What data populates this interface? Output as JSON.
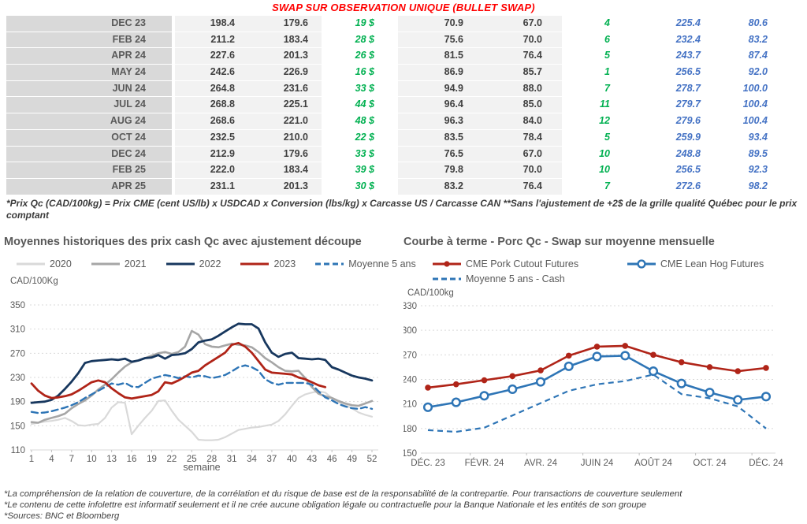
{
  "header": {
    "title": "SWAP SUR OBSERVATION UNIQUE (BULLET SWAP)",
    "title_color": "#ff0000"
  },
  "table": {
    "rows": [
      [
        "DEC 23",
        "198.4",
        "179.6",
        "19 $",
        "70.9",
        "67.0",
        "4",
        "225.4",
        "80.6"
      ],
      [
        "FEB 24",
        "211.2",
        "183.4",
        "28 $",
        "75.6",
        "70.0",
        "6",
        "232.4",
        "83.2"
      ],
      [
        "APR 24",
        "227.6",
        "201.3",
        "26 $",
        "81.5",
        "76.4",
        "5",
        "243.7",
        "87.4"
      ],
      [
        "MAY 24",
        "242.6",
        "226.9",
        "16 $",
        "86.9",
        "85.7",
        "1",
        "256.5",
        "92.0"
      ],
      [
        "JUN 24",
        "264.8",
        "231.6",
        "33 $",
        "94.9",
        "88.0",
        "7",
        "278.7",
        "100.0"
      ],
      [
        "JUL 24",
        "268.8",
        "225.1",
        "44 $",
        "96.4",
        "85.0",
        "11",
        "279.7",
        "100.4"
      ],
      [
        "AUG 24",
        "268.6",
        "221.0",
        "48 $",
        "96.3",
        "84.0",
        "12",
        "279.6",
        "100.4"
      ],
      [
        "OCT 24",
        "232.5",
        "210.0",
        "22 $",
        "83.5",
        "78.4",
        "5",
        "259.9",
        "93.4"
      ],
      [
        "DEC 24",
        "212.9",
        "179.6",
        "33 $",
        "76.5",
        "67.0",
        "10",
        "248.8",
        "89.5"
      ],
      [
        "FEB 25",
        "222.0",
        "183.4",
        "39 $",
        "79.8",
        "70.0",
        "10",
        "256.5",
        "92.3"
      ],
      [
        "APR 25",
        "231.1",
        "201.3",
        "30 $",
        "83.2",
        "76.4",
        "7",
        "272.6",
        "98.2"
      ]
    ],
    "footnote": "*Prix Qc (CAD/100kg) = Prix CME (cent US/lb) x USDCAD x Conversion (lbs/kg) x Carcasse US / Carcasse CAN **Sans l'ajustement de +2$ de la grille qualité Québec pour le prix comptant",
    "colors": {
      "positive_green": "#00b050",
      "futures_blue": "#4472c4",
      "month_bg": "#d9d9d9",
      "value_bg": "#f2f2f2"
    }
  },
  "chart_data": [
    {
      "type": "line",
      "title": "Moyennes historiques des prix cash Qc avec ajustement découpe",
      "ylabel": "CAD/100Kg",
      "xlabel": "semaine",
      "ylim": [
        110,
        350
      ],
      "yticks": [
        110,
        150,
        190,
        230,
        270,
        310,
        350
      ],
      "xticks": [
        1,
        4,
        7,
        10,
        13,
        16,
        19,
        22,
        25,
        28,
        31,
        34,
        37,
        40,
        43,
        46,
        49,
        52
      ],
      "grid": true,
      "legend_position": "top",
      "series": [
        {
          "name": "2020",
          "color": "#d9d9d9",
          "dash": false,
          "values": [
            153,
            155,
            157,
            158,
            160,
            163,
            158,
            151,
            150,
            152,
            153,
            163,
            180,
            189,
            188,
            136,
            150,
            163,
            175,
            191,
            192,
            175,
            160,
            150,
            140,
            127,
            126,
            126,
            127,
            131,
            137,
            143,
            145,
            147,
            148,
            150,
            152,
            158,
            169,
            183,
            196,
            202,
            205,
            207,
            205,
            196,
            189,
            184,
            179,
            172,
            168,
            165
          ]
        },
        {
          "name": "2021",
          "color": "#a6a6a6",
          "dash": false,
          "values": [
            156,
            155,
            160,
            163,
            166,
            170,
            179,
            186,
            192,
            200,
            210,
            218,
            227,
            238,
            248,
            255,
            258,
            262,
            266,
            270,
            272,
            269,
            272,
            281,
            307,
            301,
            285,
            281,
            280,
            283,
            286,
            284,
            283,
            280,
            272,
            262,
            255,
            247,
            241,
            240,
            241,
            229,
            214,
            203,
            199,
            196,
            191,
            187,
            184,
            183,
            187,
            191
          ]
        },
        {
          "name": "2022",
          "color": "#17375e",
          "dash": false,
          "values": [
            188,
            189,
            190,
            193,
            200,
            211,
            223,
            237,
            254,
            257,
            258,
            259,
            260,
            259,
            261,
            256,
            258,
            262,
            263,
            267,
            261,
            267,
            268,
            270,
            277,
            288,
            291,
            293,
            299,
            306,
            313,
            319,
            318,
            318,
            311,
            288,
            271,
            264,
            269,
            271,
            262,
            261,
            260,
            261,
            259,
            247,
            243,
            238,
            233,
            230,
            228,
            225
          ]
        },
        {
          "name": "2023",
          "color": "#b02418",
          "dash": false,
          "values": [
            220,
            208,
            200,
            196,
            197,
            199,
            202,
            208,
            215,
            222,
            225,
            222,
            212,
            204,
            197,
            195,
            197,
            199,
            201,
            207,
            222,
            220,
            225,
            231,
            238,
            241,
            250,
            257,
            264,
            271,
            284,
            287,
            281,
            271,
            257,
            243,
            238,
            237,
            236,
            235,
            230,
            227,
            222,
            217,
            214
          ]
        },
        {
          "name": "Moyenne 5 ans",
          "color": "#2e75b6",
          "dash": true,
          "values": [
            173,
            171,
            172,
            174,
            177,
            180,
            184,
            189,
            196,
            202,
            208,
            214,
            220,
            218,
            221,
            215,
            214,
            221,
            228,
            231,
            234,
            232,
            229,
            232,
            230,
            233,
            232,
            229,
            231,
            234,
            240,
            247,
            250,
            247,
            241,
            227,
            221,
            218,
            221,
            221,
            221,
            221,
            218,
            207,
            197,
            192,
            186,
            182,
            179,
            178,
            181,
            178
          ]
        }
      ]
    },
    {
      "type": "line",
      "title": "Courbe à terme - Porc Qc - Swap sur moyenne mensuelle",
      "ylabel": "CAD/100kg",
      "ylim": [
        150,
        330
      ],
      "yticks": [
        150,
        180,
        210,
        240,
        270,
        300,
        330
      ],
      "xtick_labels": [
        "DÉC. 23",
        "FÉVR. 24",
        "AVR. 24",
        "JUIN 24",
        "AOÛT 24",
        "OCT. 24",
        "DÉC. 24"
      ],
      "grid": true,
      "legend_position": "top",
      "series": [
        {
          "name": "CME Pork Cutout Futures",
          "color": "#b02418",
          "dash": false,
          "marker": "filled",
          "values": [
            230,
            234,
            239,
            244,
            251,
            269,
            280,
            281,
            270,
            261,
            255,
            250,
            254
          ]
        },
        {
          "name": "CME Lean Hog Futures",
          "color": "#2e75b6",
          "dash": false,
          "marker": "open",
          "values": [
            206,
            212,
            220,
            228,
            237,
            256,
            268,
            269,
            250,
            235,
            224,
            215,
            219
          ]
        },
        {
          "name": "Moyenne 5 ans - Cash",
          "color": "#2e75b6",
          "dash": true,
          "marker": null,
          "values": [
            178,
            176,
            181,
            196,
            211,
            226,
            234,
            238,
            246,
            222,
            217,
            207,
            180
          ]
        }
      ]
    }
  ],
  "footer": {
    "lines": [
      "*La compréhension de la relation de couverture, de la corrélation et du risque de base est de la responsabilité de la contrepartie. Pour transactions de couverture seulement",
      "*Le contenu de cette infolettre est informatif seulement et il ne crée aucune obligation légale ou contractuelle pour la Banque Nationale et les entités de son groupe",
      "*Sources: BNC et Bloomberg"
    ]
  }
}
